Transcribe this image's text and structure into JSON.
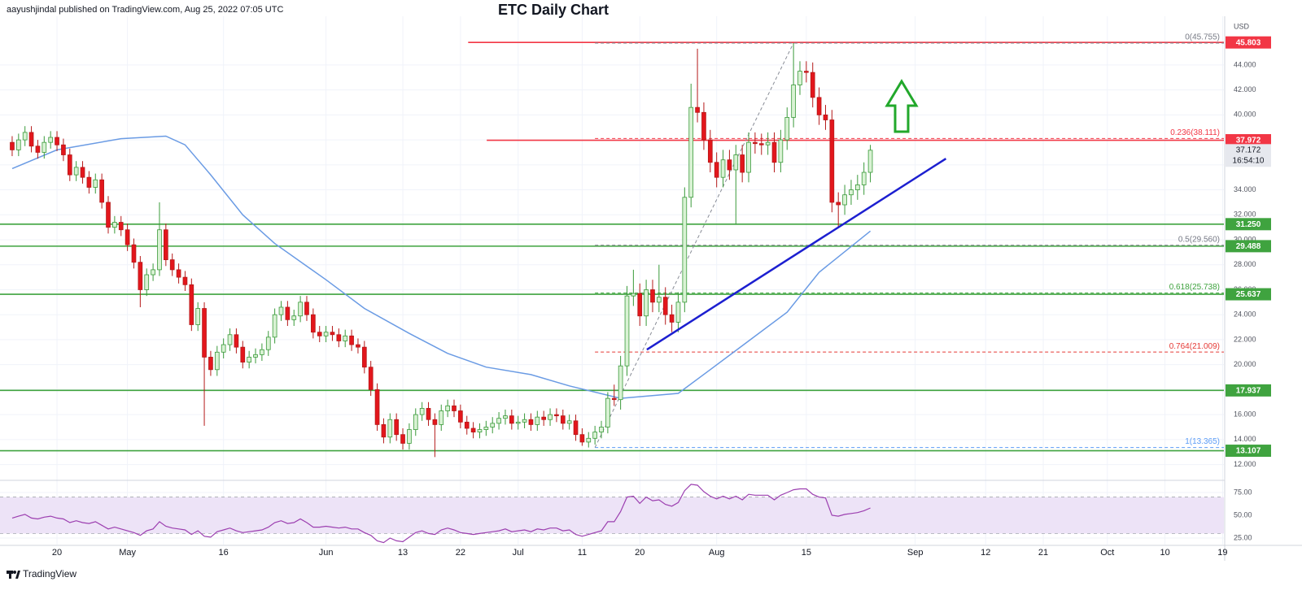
{
  "header": {
    "publisher": "aayushjindal published on TradingView.com, Aug 25, 2022 07:05 UTC",
    "logo": "TradingView"
  },
  "chart_data": {
    "type": "candlestick",
    "title": "ETC Daily Chart",
    "currency": "USD",
    "x": [
      -7,
      -6,
      -5,
      -4,
      -3,
      -2,
      -1,
      0,
      1,
      2,
      3,
      4,
      5,
      6,
      7,
      8,
      9,
      10,
      11,
      12,
      13,
      14,
      15,
      16,
      17,
      18,
      19,
      20,
      21,
      22,
      23,
      24,
      25,
      26,
      27,
      28,
      29,
      30,
      31,
      32,
      33,
      34,
      35,
      36,
      37,
      38,
      39,
      40,
      41,
      42,
      43,
      44,
      45,
      46,
      47,
      48,
      49,
      50,
      51,
      52,
      53,
      54,
      55,
      56,
      57,
      58,
      59,
      60,
      61,
      62,
      63,
      64,
      65,
      66,
      67,
      68,
      69,
      70,
      71,
      72,
      73,
      74,
      75,
      76,
      77,
      78,
      79,
      80,
      81,
      82,
      83,
      84,
      85,
      86,
      87,
      88,
      89,
      90,
      91,
      92,
      93,
      94,
      95,
      96,
      97,
      98,
      99,
      100,
      101,
      102,
      103,
      104,
      105,
      106,
      107,
      108,
      109,
      110,
      111,
      112,
      113,
      114,
      115,
      116,
      117,
      118,
      119,
      120,
      121,
      122,
      123,
      124,
      125,
      126,
      127
    ],
    "open": [
      37.8,
      37.2,
      38.0,
      38.6,
      37.5,
      37.0,
      37.8,
      38.2,
      37.6,
      36.8,
      35.2,
      35.8,
      35.0,
      34.2,
      34.8,
      33.0,
      31.0,
      31.4,
      30.8,
      29.6,
      28.2,
      26.0,
      27.2,
      27.6,
      30.8,
      28.4,
      27.6,
      27.0,
      26.4,
      23.2,
      24.5,
      20.6,
      19.6,
      21.0,
      21.6,
      22.4,
      21.4,
      20.2,
      20.6,
      20.8,
      21.2,
      22.2,
      24.0,
      24.6,
      23.6,
      23.9,
      25.0,
      24.0,
      22.6,
      22.3,
      22.6,
      22.4,
      21.9,
      22.3,
      21.6,
      21.4,
      19.8,
      18.0,
      15.2,
      14.2,
      15.6,
      14.4,
      13.7,
      14.8,
      16.0,
      16.5,
      15.6,
      15.2,
      16.3,
      16.7,
      16.3,
      15.4,
      14.9,
      14.6,
      14.8,
      15.0,
      15.3,
      15.7,
      15.9,
      15.3,
      15.4,
      15.6,
      15.2,
      15.8,
      15.6,
      16.0,
      15.9,
      15.3,
      15.5,
      14.4,
      13.8,
      14.1,
      14.6,
      15.0,
      17.3,
      17.2,
      19.9,
      25.5,
      25.7,
      23.9,
      26.0,
      25.0,
      25.4,
      24.0,
      23.4,
      25.0,
      33.4,
      40.6,
      40.2,
      38.0,
      36.2,
      35.0,
      36.4,
      35.6,
      36.8,
      35.4,
      37.8,
      37.7,
      37.6,
      37.8,
      36.2,
      38.0,
      39.8,
      42.4,
      43.5,
      43.4,
      41.4,
      40.0,
      39.6,
      33.0,
      32.8,
      33.6,
      34.0,
      34.4,
      35.4
    ],
    "high": [
      38.3,
      38.5,
      39.1,
      39.1,
      38.0,
      38.3,
      38.7,
      38.7,
      38.1,
      37.3,
      36.3,
      36.3,
      35.5,
      35.3,
      35.3,
      33.5,
      31.9,
      31.9,
      31.3,
      30.1,
      28.7,
      27.7,
      28.1,
      33.0,
      31.3,
      28.9,
      28.1,
      27.5,
      26.9,
      25.0,
      25.0,
      21.1,
      21.5,
      22.1,
      22.9,
      22.9,
      21.9,
      21.1,
      21.3,
      21.7,
      22.7,
      24.5,
      25.1,
      25.1,
      24.4,
      25.5,
      25.5,
      24.5,
      23.1,
      23.1,
      23.1,
      22.9,
      22.8,
      22.8,
      22.1,
      21.9,
      20.3,
      18.5,
      15.7,
      16.1,
      16.1,
      14.9,
      15.3,
      16.5,
      17.0,
      17.0,
      16.1,
      16.8,
      17.2,
      17.2,
      16.8,
      15.9,
      15.4,
      15.3,
      15.5,
      15.8,
      16.2,
      16.4,
      16.4,
      15.9,
      16.1,
      16.1,
      16.3,
      16.3,
      16.5,
      16.5,
      16.4,
      16.0,
      16.0,
      14.9,
      14.6,
      15.1,
      15.5,
      17.8,
      18.4,
      20.7,
      26.3,
      27.6,
      26.5,
      26.8,
      26.8,
      28.0,
      26.2,
      24.8,
      25.8,
      34.2,
      42.5,
      45.3,
      41.0,
      38.8,
      37.0,
      37.2,
      37.2,
      37.6,
      37.6,
      38.6,
      38.6,
      38.5,
      38.6,
      38.6,
      38.8,
      40.6,
      45.755,
      44.3,
      44.3,
      44.2,
      42.2,
      40.8,
      40.4,
      33.8,
      34.4,
      34.8,
      35.2,
      36.2,
      37.6
    ],
    "low": [
      36.7,
      36.7,
      37.5,
      37.0,
      36.5,
      36.5,
      37.3,
      37.1,
      36.3,
      34.7,
      34.7,
      34.5,
      33.7,
      33.7,
      32.5,
      30.5,
      30.5,
      30.3,
      29.1,
      27.7,
      24.6,
      25.5,
      26.7,
      27.1,
      27.9,
      27.1,
      26.5,
      25.9,
      22.7,
      22.7,
      15.1,
      19.1,
      19.1,
      20.5,
      21.1,
      20.9,
      19.7,
      19.7,
      20.1,
      20.3,
      20.7,
      21.7,
      23.5,
      23.1,
      23.1,
      23.4,
      23.5,
      22.1,
      21.8,
      21.8,
      21.9,
      21.4,
      21.4,
      21.1,
      20.9,
      19.3,
      17.5,
      14.7,
      13.7,
      13.7,
      13.9,
      13.2,
      13.2,
      14.3,
      15.5,
      15.1,
      12.6,
      14.7,
      15.8,
      15.8,
      14.9,
      14.4,
      14.1,
      14.1,
      14.3,
      14.5,
      14.8,
      15.2,
      14.8,
      14.8,
      14.9,
      14.7,
      14.7,
      15.1,
      15.1,
      15.4,
      14.8,
      14.8,
      13.9,
      13.5,
      13.365,
      13.6,
      14.1,
      14.5,
      16.7,
      16.4,
      19.1,
      24.7,
      23.1,
      23.1,
      24.2,
      24.2,
      23.2,
      22.6,
      22.6,
      24.2,
      32.6,
      39.4,
      37.2,
      35.4,
      34.2,
      34.2,
      34.8,
      31.2,
      34.6,
      34.6,
      36.9,
      36.8,
      36.8,
      35.4,
      35.4,
      37.2,
      39.0,
      41.6,
      42.6,
      40.6,
      39.2,
      38.8,
      32.2,
      31.0,
      32.0,
      32.8,
      33.2,
      33.6,
      34.6
    ],
    "close": [
      37.2,
      38.0,
      38.6,
      37.5,
      37.0,
      37.8,
      38.2,
      37.6,
      36.8,
      35.2,
      35.8,
      35.0,
      34.2,
      34.8,
      33.0,
      31.0,
      31.4,
      30.8,
      29.6,
      28.2,
      26.0,
      27.2,
      27.6,
      30.8,
      28.4,
      27.6,
      27.0,
      26.4,
      23.2,
      24.5,
      20.6,
      19.6,
      21.0,
      21.6,
      22.4,
      21.4,
      20.2,
      20.6,
      20.8,
      21.2,
      22.2,
      24.0,
      24.6,
      23.6,
      23.9,
      25.0,
      24.0,
      22.6,
      22.3,
      22.6,
      22.4,
      21.9,
      22.3,
      21.6,
      21.4,
      19.8,
      18.0,
      15.2,
      14.2,
      15.6,
      14.4,
      13.7,
      14.8,
      16.0,
      16.5,
      15.6,
      15.2,
      16.3,
      16.7,
      16.3,
      15.4,
      14.9,
      14.6,
      14.8,
      15.0,
      15.3,
      15.7,
      15.9,
      15.3,
      15.4,
      15.6,
      15.2,
      15.8,
      15.6,
      16.0,
      15.9,
      15.3,
      15.5,
      14.4,
      13.8,
      14.1,
      14.6,
      15.0,
      17.3,
      17.2,
      19.9,
      25.5,
      25.7,
      23.9,
      26.0,
      25.0,
      25.4,
      24.0,
      23.4,
      25.0,
      33.4,
      40.6,
      40.2,
      38.0,
      36.2,
      35.0,
      36.4,
      35.6,
      36.8,
      35.4,
      37.8,
      37.7,
      37.6,
      37.8,
      36.2,
      38.0,
      39.8,
      42.4,
      43.5,
      43.4,
      41.4,
      40.0,
      39.6,
      33.0,
      32.8,
      33.6,
      34.0,
      34.4,
      35.4,
      37.172
    ],
    "up_color": "#d9f2d4",
    "up_border": "#3a9a3a",
    "down_color": "#e3161c",
    "down_border": "#b51a1a",
    "xlim": [
      -8.9,
      182.2
    ],
    "xticks": [
      {
        "value": 0,
        "label": "20"
      },
      {
        "value": 11,
        "label": "May"
      },
      {
        "value": 26,
        "label": "16"
      },
      {
        "value": 42,
        "label": "Jun"
      },
      {
        "value": 54,
        "label": "13"
      },
      {
        "value": 63,
        "label": "22"
      },
      {
        "value": 72,
        "label": "Jul"
      },
      {
        "value": 82,
        "label": "11"
      },
      {
        "value": 91,
        "label": "20"
      },
      {
        "value": 103,
        "label": "Aug"
      },
      {
        "value": 117,
        "label": "15"
      },
      {
        "value": 134,
        "label": "Sep"
      },
      {
        "value": 145,
        "label": "12"
      },
      {
        "value": 154,
        "label": "21"
      },
      {
        "value": 164,
        "label": "Oct"
      },
      {
        "value": 173,
        "label": "10"
      },
      {
        "value": 182,
        "label": "19"
      }
    ],
    "ylim": [
      10.8,
      47.9
    ],
    "yticks": [
      {
        "value": 12,
        "label": "12.000"
      },
      {
        "value": 14,
        "label": "14.000"
      },
      {
        "value": 16,
        "label": "16.000"
      },
      {
        "value": 18,
        "label": "18.000"
      },
      {
        "value": 20,
        "label": "20.000"
      },
      {
        "value": 22,
        "label": "22.000"
      },
      {
        "value": 24,
        "label": "24.000"
      },
      {
        "value": 26,
        "label": "26.000"
      },
      {
        "value": 28,
        "label": "28.000"
      },
      {
        "value": 30,
        "label": "30.000"
      },
      {
        "value": 32,
        "label": "32.000"
      },
      {
        "value": 34,
        "label": "34.000"
      },
      {
        "value": 36,
        "label": "36.000"
      },
      {
        "value": 38,
        "label": "38.000"
      },
      {
        "value": 40,
        "label": "40.000"
      },
      {
        "value": 42,
        "label": "42.000"
      },
      {
        "value": 44,
        "label": "44.000"
      }
    ],
    "grid": true,
    "moving_average": {
      "color": "#6a9be4",
      "x": [
        -7,
        0,
        10,
        17,
        20,
        24,
        29,
        34,
        42,
        48,
        55,
        61,
        67,
        74,
        80,
        88,
        97,
        102,
        108,
        114,
        119,
        127
      ],
      "values": [
        35.7,
        37.2,
        38.1,
        38.3,
        37.6,
        35.2,
        32.0,
        29.7,
        26.8,
        24.5,
        22.5,
        20.9,
        19.8,
        19.2,
        18.3,
        17.3,
        17.7,
        19.6,
        21.9,
        24.2,
        27.4,
        30.7
      ]
    },
    "levels": [
      {
        "value": 45.803,
        "label": "45.803",
        "color": "#f23645",
        "from": 64.2
      },
      {
        "value": 37.972,
        "label": "37.972",
        "color": "#f23645",
        "from": 67.1
      },
      {
        "value": 31.25,
        "label": "31.250",
        "color": "#3fa33f"
      },
      {
        "value": 29.488,
        "label": "29.488",
        "color": "#3fa33f"
      },
      {
        "value": 25.637,
        "label": "25.637",
        "color": "#3fa33f"
      },
      {
        "value": 17.937,
        "label": "17.937",
        "color": "#3fa33f"
      },
      {
        "value": 13.107,
        "label": "13.107",
        "color": "#3fa33f"
      }
    ],
    "fib": {
      "color": "#888c96",
      "x": [
        84,
        115
      ],
      "y": [
        13.365,
        45.755
      ],
      "levels": [
        {
          "value": 45.755,
          "label": "0(45.755)",
          "color": "#787b86"
        },
        {
          "value": 38.111,
          "label": "0.236(38.111)",
          "color": "#f23645"
        },
        {
          "value": 29.56,
          "label": "0.5(29.560)",
          "color": "#787b86"
        },
        {
          "value": 25.738,
          "label": "0.618(25.738)",
          "color": "#3fa33f"
        },
        {
          "value": 21.009,
          "label": "0.764(21.009)",
          "color": "#e53935"
        },
        {
          "value": 13.365,
          "label": "1(13.365)",
          "color": "#5b9cf6"
        }
      ]
    },
    "trendline": {
      "color": "#1c1fd0",
      "x": [
        92.1,
        138.8
      ],
      "y": [
        21.2,
        36.5
      ]
    },
    "last_price": {
      "value": 37.172,
      "label": "37.172",
      "countdown": "16:54:10"
    },
    "rsi": {
      "color": "#9c3fb0",
      "band": [
        30,
        70
      ],
      "band_color": "#ede3f7",
      "ylim": [
        17.9,
        84.8
      ],
      "yticks": [
        {
          "value": 25,
          "label": "25.00"
        },
        {
          "value": 50,
          "label": "50.00"
        },
        {
          "value": 75,
          "label": "75.00"
        }
      ],
      "values": [
        47,
        49,
        51,
        47,
        46,
        48,
        49,
        47,
        46,
        42,
        44,
        42,
        41,
        43,
        39,
        35,
        37,
        35,
        33,
        31,
        28,
        33,
        35,
        43,
        38,
        36,
        35,
        34,
        29,
        33,
        27,
        26,
        32,
        34,
        36,
        33,
        31,
        32,
        33,
        34,
        37,
        42,
        44,
        41,
        42,
        46,
        42,
        37,
        37,
        38,
        37,
        36,
        37,
        35,
        35,
        31,
        28,
        22,
        20,
        25,
        22,
        21,
        26,
        31,
        33,
        30,
        29,
        34,
        36,
        34,
        31,
        30,
        29,
        30,
        31,
        32,
        33,
        35,
        32,
        33,
        34,
        32,
        35,
        34,
        36,
        36,
        33,
        34,
        29,
        27,
        29,
        31,
        33,
        43,
        43,
        54,
        70,
        71,
        63,
        70,
        66,
        67,
        62,
        60,
        64,
        77,
        84,
        83,
        76,
        71,
        68,
        71,
        68,
        71,
        67,
        73,
        72,
        72,
        72,
        67,
        72,
        75,
        78,
        79,
        79,
        73,
        70,
        69,
        50,
        49,
        51,
        52,
        53,
        55,
        58
      ]
    }
  }
}
